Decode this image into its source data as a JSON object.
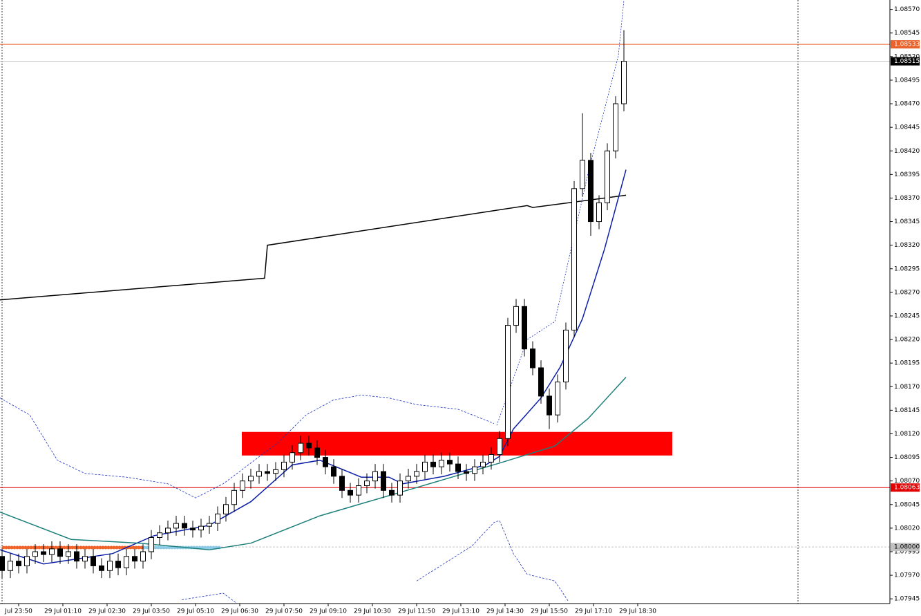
{
  "chart_data": {
    "type": "candlestick",
    "up_color": "#ffffff",
    "down_color": "#000000",
    "wick_color": "#000000",
    "xlim": [
      -0.75,
      321.25
    ],
    "ylim": [
      1.0794,
      1.0858
    ],
    "yticks": [
      {
        "value": 1.0857,
        "label": "1.08570"
      },
      1.08545,
      {
        "value": 1.0852,
        "label": "1.08520"
      },
      1.08495,
      {
        "value": 1.0847,
        "label": "1.08470"
      },
      1.08445,
      {
        "value": 1.0842,
        "label": "1.08420"
      },
      1.08395,
      {
        "value": 1.0837,
        "label": "1.08370"
      },
      1.08345,
      {
        "value": 1.0832,
        "label": "1.08320"
      },
      1.08295,
      {
        "value": 1.0827,
        "label": "1.08270"
      },
      1.08245,
      {
        "value": 1.0822,
        "label": "1.08220"
      },
      1.08195,
      {
        "value": 1.0817,
        "label": "1.08170"
      },
      1.08145,
      {
        "value": 1.0812,
        "label": "1.08120"
      },
      1.08095,
      {
        "value": 1.0807,
        "label": "1.08070"
      },
      1.08045,
      {
        "value": 1.0802,
        "label": "1.08020"
      },
      1.07995,
      {
        "value": 1.0797,
        "label": "1.07970"
      },
      1.07945
    ],
    "xticks": [
      {
        "value": 6,
        "label": "Jul 23:50"
      },
      {
        "value": 22,
        "label": "29 Jul 01:10"
      },
      {
        "value": 38,
        "label": "29 Jul 02:30"
      },
      {
        "value": 54,
        "label": "29 Jul 03:50"
      },
      {
        "value": 70,
        "label": "29 Jul 05:10"
      },
      {
        "value": 86,
        "label": "29 Jul 06:30"
      },
      {
        "value": 102,
        "label": "29 Jul 07:50"
      },
      {
        "value": 118,
        "label": "29 Jul 09:10"
      },
      {
        "value": 134,
        "label": "29 Jul 10:30"
      },
      {
        "value": 150,
        "label": "29 Jul 11:50"
      },
      {
        "value": 166,
        "label": "29 Jul 13:10"
      },
      {
        "value": 182,
        "label": "29 Jul 14:30"
      },
      {
        "value": 198,
        "label": "29 Jul 15:50"
      },
      {
        "value": 214,
        "label": "29 Jul 17:10"
      },
      {
        "value": 230,
        "label": "29 Jul 18:30"
      }
    ],
    "x": [
      0,
      3,
      6,
      9,
      12,
      15,
      18,
      21,
      24,
      27,
      30,
      33,
      36,
      39,
      42,
      45,
      48,
      51,
      54,
      57,
      60,
      63,
      66,
      69,
      72,
      75,
      78,
      81,
      84,
      87,
      90,
      93,
      96,
      99,
      102,
      105,
      108,
      111,
      114,
      117,
      120,
      123,
      126,
      129,
      132,
      135,
      138,
      141,
      144,
      147,
      150,
      153,
      156,
      159,
      162,
      165,
      168,
      171,
      174,
      177,
      180,
      183,
      186,
      189,
      192,
      195,
      198,
      201,
      204,
      207,
      210,
      213,
      216,
      219,
      222,
      225
    ],
    "ohlc": [
      [
        1.0799,
        1.07998,
        1.07967,
        1.07975
      ],
      [
        1.07975,
        1.07993,
        1.07967,
        1.07985
      ],
      [
        1.07985,
        1.07993,
        1.07972,
        1.0798
      ],
      [
        1.0798,
        1.07998,
        1.07972,
        1.0799
      ],
      [
        1.0799,
        1.08003,
        1.07982,
        1.07995
      ],
      [
        1.07995,
        1.08003,
        1.07984,
        1.07992
      ],
      [
        1.07992,
        1.08006,
        1.07984,
        1.07998
      ],
      [
        1.07998,
        1.08006,
        1.07982,
        1.0799
      ],
      [
        1.0799,
        1.08003,
        1.07982,
        1.07995
      ],
      [
        1.07995,
        1.08003,
        1.07977,
        1.07985
      ],
      [
        1.07985,
        1.07998,
        1.07977,
        1.0799
      ],
      [
        1.0799,
        1.07998,
        1.07972,
        1.0798
      ],
      [
        1.0798,
        1.07988,
        1.07967,
        1.07975
      ],
      [
        1.07975,
        1.07993,
        1.07967,
        1.07985
      ],
      [
        1.07985,
        1.07993,
        1.0797,
        1.07978
      ],
      [
        1.07978,
        1.07998,
        1.0797,
        1.0799
      ],
      [
        1.0799,
        1.07998,
        1.07977,
        1.07985
      ],
      [
        1.07985,
        1.08003,
        1.07977,
        1.07995
      ],
      [
        1.07995,
        1.08018,
        1.07987,
        1.0801
      ],
      [
        1.0801,
        1.08023,
        1.08002,
        1.08015
      ],
      [
        1.08015,
        1.08028,
        1.08007,
        1.0802
      ],
      [
        1.0802,
        1.08033,
        1.08012,
        1.08025
      ],
      [
        1.08025,
        1.08033,
        1.08012,
        1.0802
      ],
      [
        1.0802,
        1.08028,
        1.0801,
        1.08018
      ],
      [
        1.08018,
        1.0803,
        1.0801,
        1.08022
      ],
      [
        1.08022,
        1.08033,
        1.08014,
        1.08025
      ],
      [
        1.08025,
        1.08043,
        1.08017,
        1.08035
      ],
      [
        1.08035,
        1.08053,
        1.08027,
        1.08045
      ],
      [
        1.08045,
        1.08068,
        1.08037,
        1.0806
      ],
      [
        1.0806,
        1.08078,
        1.08052,
        1.0807
      ],
      [
        1.0807,
        1.08083,
        1.08062,
        1.08075
      ],
      [
        1.08075,
        1.08088,
        1.08067,
        1.0808
      ],
      [
        1.0808,
        1.08088,
        1.0807,
        1.08078
      ],
      [
        1.08078,
        1.0809,
        1.0807,
        1.08082
      ],
      [
        1.08082,
        1.08098,
        1.08074,
        1.0809
      ],
      [
        1.0809,
        1.08108,
        1.08082,
        1.081
      ],
      [
        1.081,
        1.08118,
        1.08092,
        1.0811
      ],
      [
        1.0811,
        1.08118,
        1.08097,
        1.08105
      ],
      [
        1.08105,
        1.08113,
        1.08087,
        1.08095
      ],
      [
        1.08095,
        1.08103,
        1.08077,
        1.08085
      ],
      [
        1.08085,
        1.08093,
        1.08067,
        1.08075
      ],
      [
        1.08075,
        1.08083,
        1.08052,
        1.0806
      ],
      [
        1.0806,
        1.08068,
        1.08047,
        1.08055
      ],
      [
        1.08055,
        1.08073,
        1.08047,
        1.08065
      ],
      [
        1.08065,
        1.08078,
        1.08057,
        1.0807
      ],
      [
        1.0807,
        1.08088,
        1.08062,
        1.0808
      ],
      [
        1.0808,
        1.08088,
        1.08052,
        1.0806
      ],
      [
        1.0806,
        1.08068,
        1.08047,
        1.08055
      ],
      [
        1.08055,
        1.08078,
        1.08047,
        1.0807
      ],
      [
        1.0807,
        1.08083,
        1.08062,
        1.08075
      ],
      [
        1.08075,
        1.08088,
        1.08067,
        1.0808
      ],
      [
        1.0808,
        1.08098,
        1.08072,
        1.0809
      ],
      [
        1.0809,
        1.08098,
        1.08077,
        1.08085
      ],
      [
        1.08085,
        1.081,
        1.08077,
        1.08092
      ],
      [
        1.08092,
        1.081,
        1.0808,
        1.08088
      ],
      [
        1.08088,
        1.08096,
        1.08072,
        1.0808
      ],
      [
        1.0808,
        1.08088,
        1.0807,
        1.08078
      ],
      [
        1.08078,
        1.08093,
        1.0807,
        1.08085
      ],
      [
        1.08085,
        1.08098,
        1.08077,
        1.0809
      ],
      [
        1.0809,
        1.08106,
        1.08082,
        1.08098
      ],
      [
        1.08098,
        1.08123,
        1.0809,
        1.08115
      ],
      [
        1.08115,
        1.08243,
        1.08107,
        1.08235
      ],
      [
        1.08235,
        1.08263,
        1.08227,
        1.08255
      ],
      [
        1.08255,
        1.08263,
        1.08202,
        1.0821
      ],
      [
        1.0821,
        1.08218,
        1.08182,
        1.0819
      ],
      [
        1.0819,
        1.08198,
        1.08152,
        1.0816
      ],
      [
        1.0816,
        1.08168,
        1.08125,
        1.0814
      ],
      [
        1.0814,
        1.08183,
        1.08132,
        1.08175
      ],
      [
        1.08175,
        1.08238,
        1.08167,
        1.0823
      ],
      [
        1.0823,
        1.08388,
        1.08222,
        1.0838
      ],
      [
        1.0838,
        1.0846,
        1.08372,
        1.0841
      ],
      [
        1.0841,
        1.08418,
        1.0833,
        1.08345
      ],
      [
        1.08345,
        1.08373,
        1.08337,
        1.08365
      ],
      [
        1.08365,
        1.08428,
        1.08357,
        1.0842
      ],
      [
        1.0842,
        1.08478,
        1.08412,
        1.0847
      ],
      [
        1.0847,
        1.08548,
        1.08462,
        1.08515
      ]
    ],
    "lines": [
      {
        "color": "#000000",
        "width": 1.5,
        "x": [
          -0.75,
          95,
          96,
          190,
          192,
          225.75
        ],
        "values": [
          1.08262,
          1.08285,
          1.0832,
          1.08362,
          1.0836,
          1.08373
        ]
      },
      {
        "color": "#0b1fa8",
        "width": 1.5,
        "x": [
          -0.75,
          15,
          40,
          55,
          75,
          90,
          105,
          115,
          130,
          140,
          145,
          160,
          175,
          180,
          185,
          195,
          202,
          210,
          218,
          225.75
        ],
        "values": [
          1.07997,
          1.07982,
          1.07993,
          1.08012,
          1.08023,
          1.08048,
          1.08087,
          1.08092,
          1.08074,
          1.08074,
          1.08067,
          1.08075,
          1.08087,
          1.08096,
          1.08125,
          1.08158,
          1.08191,
          1.08242,
          1.08316,
          1.084
        ]
      },
      {
        "color": "#1c7f7a",
        "width": 1.5,
        "x": [
          -0.75,
          25,
          50,
          75,
          90,
          115,
          150,
          180,
          200,
          212,
          225.75
        ],
        "values": [
          1.08037,
          1.08008,
          1.08004,
          1.07997,
          1.08004,
          1.08033,
          1.08063,
          1.08089,
          1.08107,
          1.08136,
          1.0818
        ]
      },
      {
        "color": "#1a2fc0",
        "width": 0.8,
        "dash": "3,2",
        "x": [
          -0.75,
          10,
          20,
          30,
          45,
          60,
          70,
          80,
          100,
          110,
          120,
          130,
          140,
          150,
          165,
          178
        ],
        "values": [
          1.08158,
          1.0814,
          1.08092,
          1.08078,
          1.08074,
          1.08067,
          1.08052,
          1.08067,
          1.08111,
          1.0814,
          1.08156,
          1.08161,
          1.08158,
          1.08151,
          1.08146,
          1.08131
        ]
      },
      {
        "color": "#1a2fc0",
        "width": 0.8,
        "dash": "3,2",
        "x": [
          65,
          80,
          85,
          140,
          150,
          170,
          178,
          180,
          185,
          190,
          200,
          205
        ],
        "values": [
          1.07944,
          1.07951,
          1.0794,
          null,
          1.07964,
          1.08001,
          1.08026,
          1.08028,
          1.07993,
          1.07971,
          1.07964,
          1.07942
        ]
      },
      {
        "color": "#1a2fc0",
        "width": 0.8,
        "dash": "2,2",
        "x": [
          179,
          190,
          200,
          212,
          223,
          225
        ],
        "values": [
          1.08129,
          1.0822,
          1.08239,
          1.08396,
          1.08521,
          1.0858
        ]
      }
    ],
    "zones": [
      {
        "color": "#ff0000",
        "x": [
          86.75,
          242.5
        ],
        "y": [
          1.08097,
          1.08122
        ]
      }
    ],
    "hlines": [
      {
        "value": 1.08533,
        "color": "#e8622c",
        "text_color": "#ffffff"
      },
      {
        "value": 1.08515,
        "color": "#000000",
        "line_color": "#c0c0c0",
        "text_color": "#ffffff"
      },
      {
        "value": 1.08063,
        "color": "#e00000",
        "text_color": "#ffffff"
      },
      {
        "value": 1.08,
        "label": "1.08000",
        "color": "#c0c0c0",
        "text_color": "#000000",
        "dashed": true
      }
    ]
  }
}
